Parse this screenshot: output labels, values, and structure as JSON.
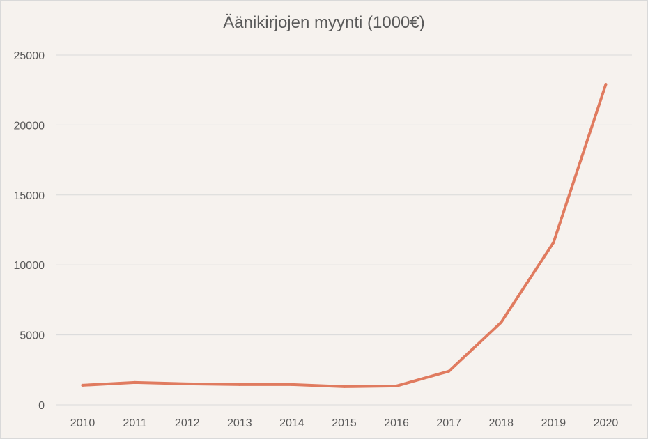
{
  "chart_data": {
    "type": "line",
    "title": "Äänikirjojen myynti (1000€)",
    "xlabel": "",
    "ylabel": "",
    "categories": [
      "2010",
      "2011",
      "2012",
      "2013",
      "2014",
      "2015",
      "2016",
      "2017",
      "2018",
      "2019",
      "2020"
    ],
    "series": [
      {
        "values": [
          1400,
          1600,
          1500,
          1450,
          1450,
          1300,
          1350,
          2400,
          5900,
          11600,
          22900
        ]
      }
    ],
    "ylim": [
      0,
      25000
    ],
    "yticks": [
      "0",
      "5000",
      "10000",
      "15000",
      "20000",
      "25000"
    ],
    "grid": true,
    "legend": "none",
    "colors": {
      "line": "#e07b5f",
      "grid": "#d9d9d9",
      "background": "#f6f2ee",
      "text": "#595959"
    }
  }
}
